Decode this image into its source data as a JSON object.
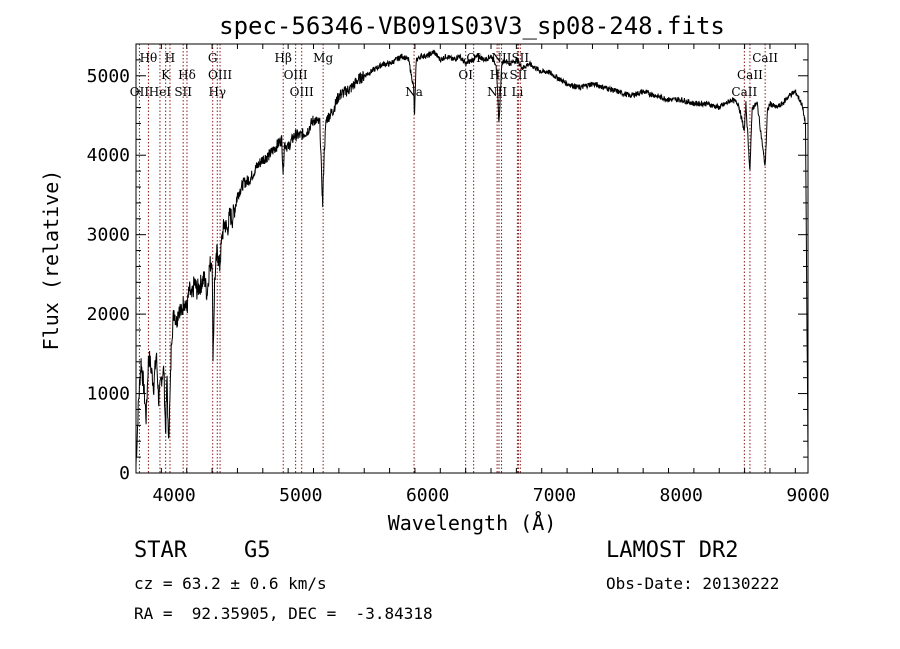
{
  "chart_data": {
    "type": "line",
    "title": "spec-56346-VB091S03V3_sp08-248.fits",
    "xlabel": "Wavelength (Å)",
    "ylabel": "Flux (relative)",
    "xlim": [
      3700,
      9000
    ],
    "ylim": [
      0,
      5400
    ],
    "x_ticks": [
      4000,
      5000,
      6000,
      7000,
      8000,
      9000
    ],
    "y_ticks": [
      0,
      1000,
      2000,
      3000,
      4000,
      5000
    ],
    "grid": false,
    "series": [
      {
        "x": [
          3700,
          3720,
          3740,
          3760,
          3780,
          3800,
          3820,
          3840,
          3860,
          3880,
          3900,
          3920,
          3933,
          3945,
          3955,
          3968,
          3980,
          4000,
          4020,
          4040,
          4060,
          4080,
          4100,
          4120,
          4140,
          4160,
          4180,
          4200,
          4220,
          4240,
          4260,
          4280,
          4300,
          4308,
          4320,
          4340,
          4360,
          4380,
          4400,
          4420,
          4440,
          4460,
          4480,
          4500,
          4550,
          4600,
          4650,
          4700,
          4750,
          4800,
          4850,
          4861,
          4870,
          4900,
          4950,
          5000,
          5050,
          5100,
          5150,
          5172,
          5183,
          5200,
          5250,
          5300,
          5350,
          5400,
          5450,
          5500,
          5550,
          5600,
          5650,
          5700,
          5750,
          5800,
          5850,
          5890,
          5896,
          5910,
          5950,
          6000,
          6050,
          6100,
          6150,
          6200,
          6250,
          6300,
          6350,
          6400,
          6450,
          6500,
          6540,
          6563,
          6585,
          6600,
          6650,
          6700,
          6750,
          6800,
          6850,
          6900,
          6950,
          7000,
          7100,
          7200,
          7300,
          7400,
          7500,
          7600,
          7700,
          7800,
          7900,
          8000,
          8100,
          8200,
          8300,
          8400,
          8450,
          8498,
          8510,
          8542,
          8560,
          8600,
          8662,
          8680,
          8700,
          8750,
          8800,
          8850,
          8900,
          8950,
          8980,
          9000
        ],
        "values": [
          100,
          900,
          1400,
          1100,
          700,
          1500,
          1300,
          1100,
          1500,
          900,
          1200,
          1300,
          500,
          1200,
          400,
          900,
          1700,
          2050,
          1900,
          2100,
          2000,
          2200,
          2050,
          2300,
          2200,
          2400,
          2300,
          2350,
          2400,
          2450,
          2250,
          2600,
          2700,
          1450,
          2400,
          2800,
          2600,
          3000,
          3150,
          3050,
          3250,
          3200,
          3350,
          3500,
          3650,
          3700,
          3850,
          3950,
          4000,
          4100,
          4200,
          3750,
          4150,
          4100,
          4250,
          4250,
          4300,
          4450,
          4400,
          3350,
          4000,
          4450,
          4550,
          4750,
          4800,
          4850,
          4950,
          5000,
          5050,
          5100,
          5150,
          5150,
          5200,
          5250,
          5200,
          4850,
          4450,
          5200,
          5250,
          5250,
          5300,
          5200,
          5250,
          5200,
          5250,
          5150,
          5200,
          5250,
          5200,
          5250,
          5150,
          4400,
          5150,
          5200,
          5150,
          5200,
          5100,
          5150,
          5100,
          5050,
          5050,
          5000,
          4900,
          4850,
          4900,
          4850,
          4800,
          4750,
          4800,
          4750,
          4700,
          4700,
          4650,
          4650,
          4600,
          4700,
          4650,
          4300,
          4650,
          3800,
          4600,
          4650,
          3850,
          4550,
          4650,
          4600,
          4650,
          4750,
          4800,
          4650,
          4400,
          200
        ]
      }
    ],
    "lines": [
      {
        "label": "Hθ",
        "x": 3798,
        "row": 1
      },
      {
        "label": "OII",
        "x": 3727,
        "row": 3
      },
      {
        "label": "H",
        "x": 3968,
        "row": 1
      },
      {
        "label": "K",
        "x": 3934,
        "row": 2
      },
      {
        "label": "HeI",
        "x": 3889,
        "row": 3
      },
      {
        "label": "SII",
        "x": 4072,
        "row": 3
      },
      {
        "label": "Hδ",
        "x": 4102,
        "row": 2
      },
      {
        "label": "G",
        "x": 4305,
        "row": 1
      },
      {
        "label": "OIII",
        "x": 4363,
        "row": 2
      },
      {
        "label": "Hγ",
        "x": 4341,
        "row": 3
      },
      {
        "label": "Hβ",
        "x": 4861,
        "row": 1
      },
      {
        "label": "OIII",
        "x": 4959,
        "row": 2
      },
      {
        "label": "OIII",
        "x": 5007,
        "row": 3
      },
      {
        "label": "Mg",
        "x": 5176,
        "row": 1
      },
      {
        "label": "Na",
        "x": 5893,
        "row": 3
      },
      {
        "label": "OI",
        "x": 6300,
        "row": 2
      },
      {
        "label": "OI",
        "x": 6363,
        "row": 1
      },
      {
        "label": "NII",
        "x": 6548,
        "row": 3
      },
      {
        "label": "Hα",
        "x": 6563,
        "row": 2
      },
      {
        "label": "NII",
        "x": 6583,
        "row": 1
      },
      {
        "label": "SII",
        "x": 6716,
        "row": 2
      },
      {
        "label": "SII",
        "x": 6731,
        "row": 1
      },
      {
        "label": "Li",
        "x": 6708,
        "row": 3
      },
      {
        "label": "CaII",
        "x": 8498,
        "row": 3
      },
      {
        "label": "CaII",
        "x": 8542,
        "row": 2
      },
      {
        "label": "CaII",
        "x": 8662,
        "row": 1
      }
    ],
    "line_marker_color": "#8b1a1a",
    "spectrum_color": "#000000"
  },
  "info": {
    "object_class": "STAR",
    "subclass": "G5",
    "survey": "LAMOST DR2",
    "redshift": "cz = 63.2 ± 0.6 km/s",
    "obs_date": "Obs-Date: 20130222",
    "coords": "RA =  92.35905, DEC =  -3.84318"
  }
}
